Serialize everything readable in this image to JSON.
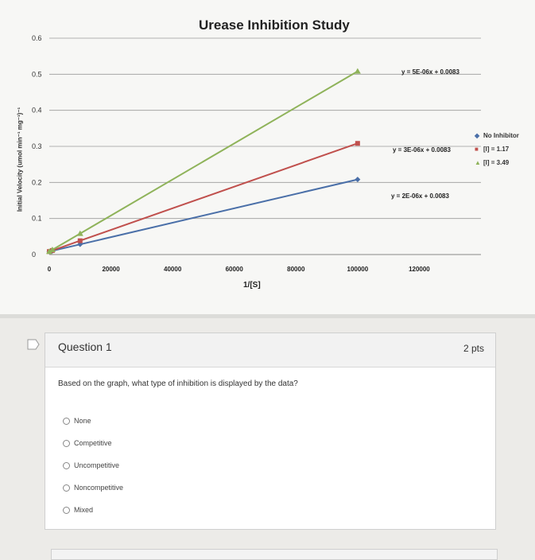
{
  "chart_data": {
    "type": "line",
    "title": "Urease Inhibition Study",
    "xlabel": "1/[S]",
    "ylabel": "Initial Velocity (umol min⁻¹ mg⁻¹)⁻¹",
    "xlim": [
      0,
      140000
    ],
    "ylim": [
      0,
      0.6
    ],
    "x_ticks": [
      "0",
      "20000",
      "40000",
      "60000",
      "80000",
      "100000",
      "120000"
    ],
    "y_ticks": [
      "0",
      "0.1",
      "0.2",
      "0.3",
      "0.4",
      "0.5",
      "0.6"
    ],
    "grid": true,
    "legend_position": "right",
    "series": [
      {
        "name": "No Inhibitor",
        "marker": "diamond",
        "color": "#4a6fa8",
        "x": [
          0,
          1000,
          10000,
          100000
        ],
        "y": [
          0.0083,
          0.0103,
          0.0283,
          0.2083
        ],
        "equation": "y = 2E-06x + 0.0083"
      },
      {
        "name": "[I] = 1.17",
        "marker": "square",
        "color": "#c0504d",
        "x": [
          0,
          1000,
          10000,
          100000
        ],
        "y": [
          0.0083,
          0.0113,
          0.0383,
          0.3083
        ],
        "equation": "y = 3E-06x + 0.0083"
      },
      {
        "name": "[I] = 3.49",
        "marker": "triangle",
        "color": "#8fb35a",
        "x": [
          0,
          1000,
          10000,
          100000
        ],
        "y": [
          0.0083,
          0.0133,
          0.0583,
          0.5083
        ],
        "equation": "y = 5E-06x + 0.0083"
      }
    ]
  },
  "question": {
    "title": "Question 1",
    "points": "2 pts",
    "text": "Based on the graph, what type of inhibition is displayed by the data?",
    "options": [
      "None",
      "Competitive",
      "Uncompetitive",
      "Noncompetitive",
      "Mixed"
    ]
  }
}
